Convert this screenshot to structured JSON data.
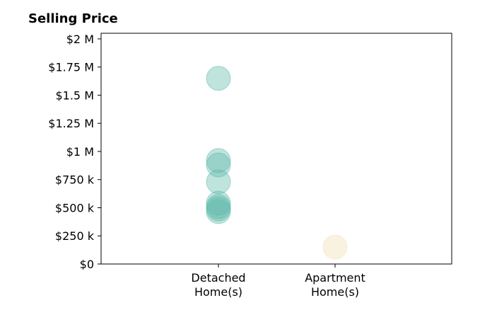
{
  "chart_data": {
    "type": "scatter",
    "title": "Selling Price",
    "xlabel": "",
    "ylabel": "",
    "categories": [
      "Detached\nHome(s)",
      "Apartment\nHome(s)"
    ],
    "ylim": [
      0,
      2050000
    ],
    "y_ticks": [
      {
        "value": 0,
        "label": "$0"
      },
      {
        "value": 250000,
        "label": "$250 k"
      },
      {
        "value": 500000,
        "label": "$500 k"
      },
      {
        "value": 750000,
        "label": "$750 k"
      },
      {
        "value": 1000000,
        "label": "$1 M"
      },
      {
        "value": 1250000,
        "label": "$1.25 M"
      },
      {
        "value": 1500000,
        "label": "$1.5 M"
      },
      {
        "value": 1750000,
        "label": "$1.75 M"
      },
      {
        "value": 2000000,
        "label": "$2 M"
      }
    ],
    "series": [
      {
        "category": "Detached\nHome(s)",
        "color": "#5fb8aa",
        "values": [
          1650000,
          920000,
          880000,
          730000,
          540000,
          510000,
          490000,
          465000
        ]
      },
      {
        "category": "Apartment\nHome(s)",
        "color": "#f3dfb2",
        "values": [
          150000
        ]
      }
    ],
    "grid": false,
    "legend": "none"
  }
}
